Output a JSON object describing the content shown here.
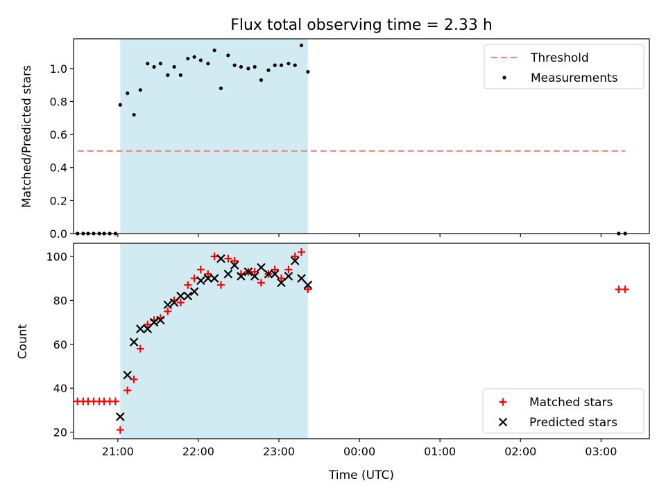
{
  "chart_data": {
    "title": "Flux total observing time = 2.33 h",
    "xlabel": "Time (UTC)",
    "x_ticks": [
      "21:00",
      "22:00",
      "23:00",
      "00:00",
      "01:00",
      "02:00",
      "03:00"
    ],
    "x_range_hours": [
      20.45,
      27.6
    ],
    "shaded_span_hours": [
      21.03,
      23.36
    ],
    "shade_color": "#add8e6",
    "panels": [
      {
        "type": "scatter",
        "ylabel": "Matched/Predicted stars",
        "ylim": [
          0,
          1.18
        ],
        "y_ticks": [
          "0.0",
          "0.2",
          "0.4",
          "0.6",
          "0.8",
          "1.0"
        ],
        "legend_position": "top-right",
        "threshold": {
          "name": "Threshold",
          "value": 0.5,
          "x_start": 20.5,
          "x_end": 27.3,
          "color": "#f08080",
          "style": "dashed"
        },
        "series": [
          {
            "name": "Measurements",
            "marker": "dot",
            "color": "#000000",
            "x": [
              20.5,
              20.57,
              20.63,
              20.7,
              20.77,
              20.83,
              20.9,
              20.97,
              21.03,
              21.12,
              21.2,
              21.28,
              21.37,
              21.45,
              21.53,
              21.62,
              21.7,
              21.78,
              21.87,
              21.95,
              22.03,
              22.12,
              22.2,
              22.28,
              22.37,
              22.45,
              22.53,
              22.62,
              22.7,
              22.78,
              22.87,
              22.95,
              23.03,
              23.12,
              23.2,
              23.28,
              23.36,
              27.22,
              27.3
            ],
            "y": [
              0,
              0,
              0,
              0,
              0,
              0,
              0,
              0,
              0.78,
              0.85,
              0.72,
              0.87,
              1.03,
              1.01,
              1.03,
              0.96,
              1.01,
              0.96,
              1.06,
              1.07,
              1.05,
              1.03,
              1.11,
              0.88,
              1.08,
              1.02,
              1.01,
              1.0,
              1.01,
              0.93,
              0.99,
              1.02,
              1.02,
              1.03,
              1.02,
              1.14,
              0.98,
              0,
              0
            ]
          }
        ]
      },
      {
        "type": "scatter",
        "ylabel": "Count",
        "ylim": [
          17,
          106
        ],
        "y_ticks": [
          "20",
          "40",
          "60",
          "80",
          "100"
        ],
        "legend_position": "bottom-right",
        "series": [
          {
            "name": "Matched stars",
            "marker": "plus",
            "color": "#ff0000",
            "x": [
              20.5,
              20.57,
              20.63,
              20.7,
              20.77,
              20.83,
              20.9,
              20.97,
              21.03,
              21.12,
              21.2,
              21.28,
              21.37,
              21.45,
              21.53,
              21.62,
              21.7,
              21.78,
              21.87,
              21.95,
              22.03,
              22.12,
              22.2,
              22.28,
              22.37,
              22.45,
              22.53,
              22.62,
              22.7,
              22.78,
              22.87,
              22.95,
              23.03,
              23.12,
              23.2,
              23.28,
              23.36,
              27.22,
              27.3
            ],
            "y": [
              34,
              34,
              34,
              34,
              34,
              34,
              34,
              34,
              21,
              39,
              44,
              58,
              69,
              71,
              72,
              75,
              80,
              79,
              87,
              90,
              94,
              92,
              100,
              87,
              99,
              98,
              92,
              93,
              93,
              88,
              92,
              94,
              90,
              94,
              100,
              102,
              85,
              85,
              85
            ]
          },
          {
            "name": "Predicted stars",
            "marker": "x",
            "color": "#000000",
            "x": [
              21.03,
              21.12,
              21.2,
              21.28,
              21.37,
              21.45,
              21.53,
              21.62,
              21.7,
              21.78,
              21.87,
              21.95,
              22.03,
              22.12,
              22.2,
              22.28,
              22.37,
              22.45,
              22.53,
              22.62,
              22.7,
              22.78,
              22.87,
              22.95,
              23.03,
              23.12,
              23.2,
              23.28,
              23.36
            ],
            "y": [
              27,
              46,
              61,
              67,
              67,
              70,
              71,
              78,
              79,
              82,
              82,
              84,
              89,
              90,
              90,
              99,
              92,
              96,
              91,
              93,
              91,
              95,
              92,
              92,
              88,
              91,
              98,
              90,
              87
            ]
          }
        ]
      }
    ]
  }
}
